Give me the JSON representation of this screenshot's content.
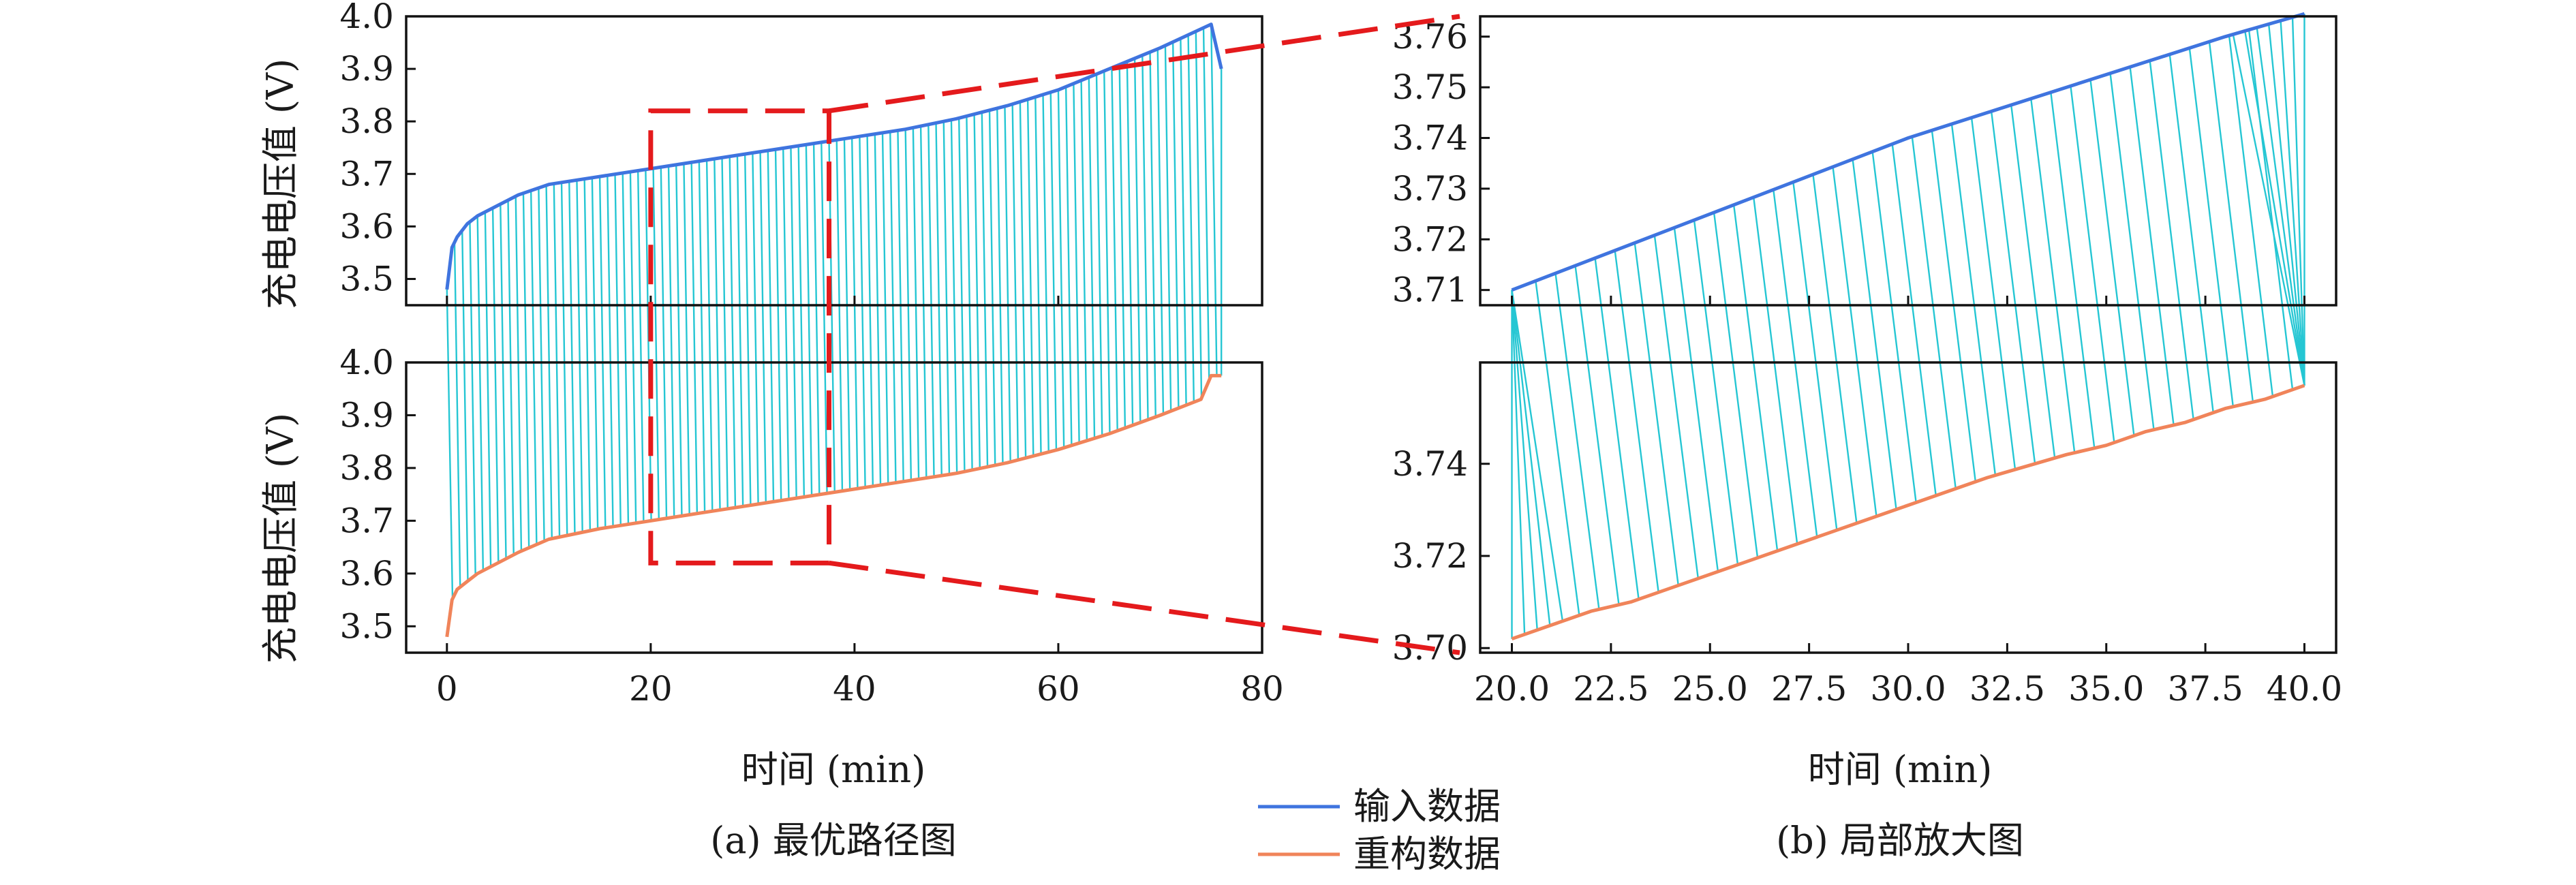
{
  "caption_a": "(a) 最优路径图",
  "caption_b": "(b) 局部放大图",
  "legend": [
    {
      "label": "输入数据",
      "color": "#3f74df"
    },
    {
      "label": "重构数据",
      "color": "#f0845a"
    }
  ],
  "colors": {
    "input": "#3f74df",
    "reconstructed": "#f0845a",
    "warping_path": "#25c6d3",
    "zoom_box": "#e41a1c"
  },
  "chart_data": [
    {
      "type": "line",
      "panel": "a-top",
      "ylabel": "充电电压值 (V)",
      "xlim": [
        -4,
        80
      ],
      "ylim": [
        3.45,
        4.0
      ],
      "yticks": [
        "3.5",
        "3.6",
        "3.7",
        "3.8",
        "3.9",
        "4.0"
      ],
      "series": [
        {
          "name": "输入数据",
          "x": [
            0,
            0.5,
            1,
            2,
            3,
            5,
            7,
            10,
            15,
            20,
            25,
            30,
            35,
            40,
            45,
            50,
            55,
            60,
            65,
            70,
            75,
            76
          ],
          "y": [
            3.48,
            3.56,
            3.58,
            3.605,
            3.62,
            3.64,
            3.66,
            3.68,
            3.695,
            3.71,
            3.725,
            3.74,
            3.755,
            3.77,
            3.785,
            3.805,
            3.83,
            3.86,
            3.9,
            3.94,
            3.985,
            3.9
          ]
        }
      ]
    },
    {
      "type": "line",
      "panel": "a-bottom",
      "ylabel": "充电电压值 (V)",
      "xlabel": "时间 (min)",
      "xlim": [
        -4,
        80
      ],
      "ylim": [
        3.45,
        4.0
      ],
      "xticks": [
        "0",
        "20",
        "40",
        "60",
        "80"
      ],
      "yticks": [
        "3.5",
        "3.6",
        "3.7",
        "3.8",
        "3.9",
        "4.0"
      ],
      "series": [
        {
          "name": "重构数据",
          "x": [
            0,
            0.5,
            1,
            2,
            3,
            5,
            7,
            10,
            15,
            20,
            25,
            30,
            35,
            40,
            45,
            50,
            55,
            60,
            65,
            70,
            74,
            75,
            76
          ],
          "y": [
            3.48,
            3.55,
            3.57,
            3.585,
            3.6,
            3.62,
            3.64,
            3.665,
            3.685,
            3.7,
            3.715,
            3.73,
            3.745,
            3.76,
            3.775,
            3.79,
            3.81,
            3.835,
            3.865,
            3.9,
            3.93,
            3.975,
            3.975
          ]
        }
      ]
    },
    {
      "type": "line",
      "panel": "b-top",
      "xlim": [
        19.2,
        40.8
      ],
      "ylim": [
        3.707,
        3.764
      ],
      "yticks": [
        "3.71",
        "3.72",
        "3.73",
        "3.74",
        "3.75",
        "3.76"
      ],
      "series": [
        {
          "name": "输入数据",
          "x": [
            20,
            22,
            24,
            26,
            28,
            30,
            32,
            34,
            36,
            38,
            40
          ],
          "y": [
            3.71,
            3.716,
            3.722,
            3.728,
            3.734,
            3.74,
            3.745,
            3.75,
            3.755,
            3.76,
            3.7645
          ]
        }
      ]
    },
    {
      "type": "line",
      "panel": "b-bottom",
      "xlabel": "时间 (min)",
      "xlim": [
        19.2,
        40.8
      ],
      "ylim": [
        3.699,
        3.762
      ],
      "xticks": [
        "20.0",
        "22.5",
        "25.0",
        "27.5",
        "30.0",
        "32.5",
        "35.0",
        "37.5",
        "40.0"
      ],
      "yticks": [
        "3.70",
        "3.72",
        "3.74"
      ],
      "series": [
        {
          "name": "重构数据",
          "x": [
            20,
            21,
            22,
            23,
            24,
            26,
            28,
            30,
            32,
            34,
            35,
            36,
            37,
            38,
            39,
            40
          ],
          "y": [
            3.702,
            3.705,
            3.708,
            3.71,
            3.713,
            3.719,
            3.725,
            3.731,
            3.737,
            3.742,
            3.744,
            3.747,
            3.749,
            3.752,
            3.754,
            3.757
          ]
        }
      ]
    }
  ]
}
